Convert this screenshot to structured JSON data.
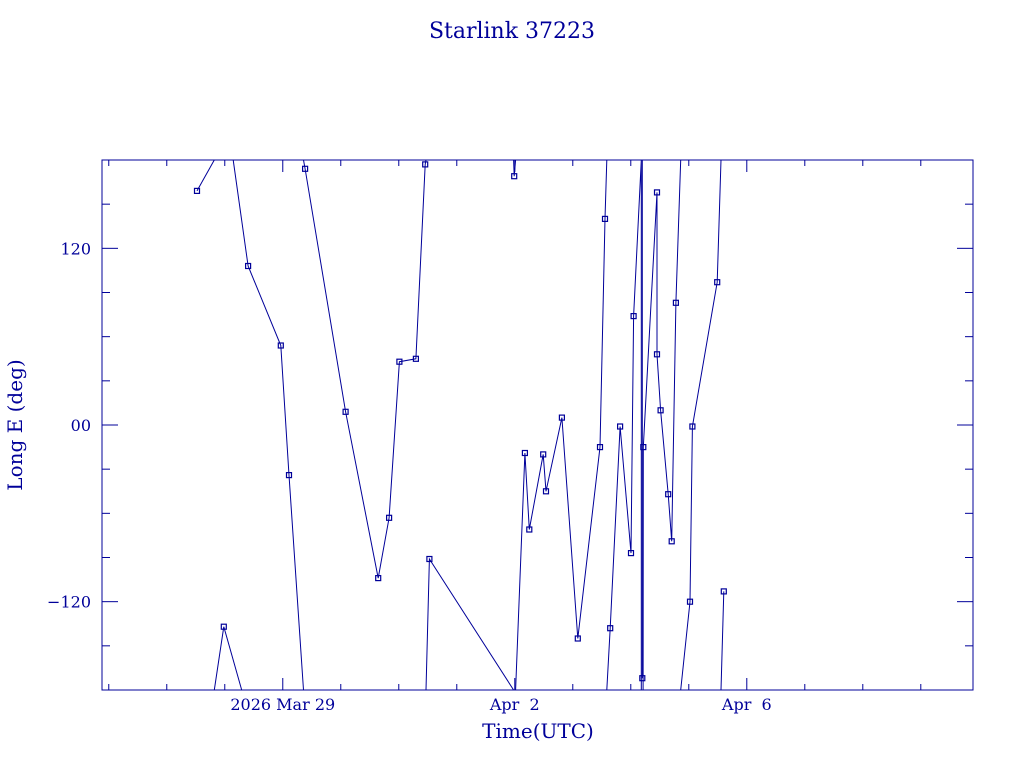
{
  "chart_data": {
    "type": "line",
    "title": "Starlink 37223",
    "xlabel": "Time(UTC)",
    "ylabel": "Long E (deg)",
    "x_tick_labels": [
      "2026 Mar 29",
      "Apr  2",
      "Apr  6"
    ],
    "x_tick_values": [
      "2026-03-29",
      "2026-04-02",
      "2026-04-06"
    ],
    "y_tick_labels": [
      "120",
      "00",
      "−120"
    ],
    "y_tick_values": [
      120,
      0,
      -120
    ],
    "xlim": [
      "2026-03-25T21:12",
      "2026-04-09T21:36"
    ],
    "ylim": [
      -180,
      180
    ],
    "grid": false,
    "legend": "none",
    "color": "#000099",
    "x_unit": "date",
    "points": [
      [
        "2026-03-27T12:30",
        159
      ],
      [
        "2026-03-27T19:40",
        180
      ],
      [
        "2026-03-27T19:40",
        -180
      ],
      [
        "2026-03-27T23:35",
        -137
      ],
      [
        "2026-03-28T07:00",
        -180
      ],
      [
        "2026-03-28T03:30",
        180
      ],
      [
        "2026-03-28T09:40",
        108
      ],
      [
        "2026-03-28T23:10",
        54
      ],
      [
        "2026-03-29T02:35",
        -34
      ],
      [
        "2026-03-29T08:35",
        -180
      ],
      [
        "2026-03-29T08:35",
        180
      ],
      [
        "2026-03-29T09:15",
        174
      ],
      [
        "2026-03-30T02:00",
        9
      ],
      [
        "2026-03-30T15:30",
        -104
      ],
      [
        "2026-03-30T20:00",
        -63
      ],
      [
        "2026-03-31T00:15",
        43
      ],
      [
        "2026-03-31T07:05",
        45
      ],
      [
        "2026-03-31T10:55",
        177
      ],
      [
        "2026-03-31T11:15",
        180
      ],
      [
        "2026-03-31T11:15",
        -180
      ],
      [
        "2026-03-31T12:40",
        -91
      ],
      [
        "2026-04-01T23:30",
        -180
      ],
      [
        "2026-04-01T23:30",
        180
      ],
      [
        "2026-04-01T23:45",
        169
      ],
      [
        "2026-04-02T00:20",
        180
      ],
      [
        "2026-04-02T00:20",
        -180
      ],
      [
        "2026-04-02T04:10",
        -19
      ],
      [
        "2026-04-02T06:00",
        -71
      ],
      [
        "2026-04-02T11:45",
        -20
      ],
      [
        "2026-04-02T12:55",
        -45
      ],
      [
        "2026-04-02T19:30",
        5
      ],
      [
        "2026-04-03T02:05",
        -145
      ],
      [
        "2026-04-03T11:15",
        -15
      ],
      [
        "2026-04-03T13:20",
        140
      ],
      [
        "2026-04-03T14:05",
        180
      ],
      [
        "2026-04-03T14:05",
        -180
      ],
      [
        "2026-04-03T15:30",
        -138
      ],
      [
        "2026-04-03T19:35",
        -1
      ],
      [
        "2026-04-04T00:05",
        -87
      ],
      [
        "2026-04-04T01:10",
        74
      ],
      [
        "2026-04-04T04:20",
        180
      ],
      [
        "2026-04-04T04:20",
        -180
      ],
      [
        "2026-04-04T04:45",
        -172
      ],
      [
        "2026-04-04T04:45",
        180
      ],
      [
        "2026-04-04T05:05",
        -180
      ],
      [
        "2026-04-04T05:10",
        -15
      ],
      [
        "2026-04-04T10:50",
        158
      ],
      [
        "2026-04-04T10:50",
        48
      ],
      [
        "2026-04-04T12:20",
        10
      ],
      [
        "2026-04-04T15:30",
        -47
      ],
      [
        "2026-04-04T16:55",
        -79
      ],
      [
        "2026-04-04T18:40",
        83
      ],
      [
        "2026-04-04T20:40",
        180
      ],
      [
        "2026-04-04T20:40",
        -180
      ],
      [
        "2026-04-05T00:30",
        -120
      ],
      [
        "2026-04-05T01:30",
        -1
      ],
      [
        "2026-04-05T11:45",
        97
      ],
      [
        "2026-04-05T13:20",
        180
      ],
      [
        "2026-04-05T13:20",
        -180
      ],
      [
        "2026-04-05T14:30",
        -113
      ]
    ],
    "breaks_after": [
      1,
      4,
      9,
      18,
      21,
      24,
      34,
      41,
      43,
      52,
      57
    ]
  }
}
